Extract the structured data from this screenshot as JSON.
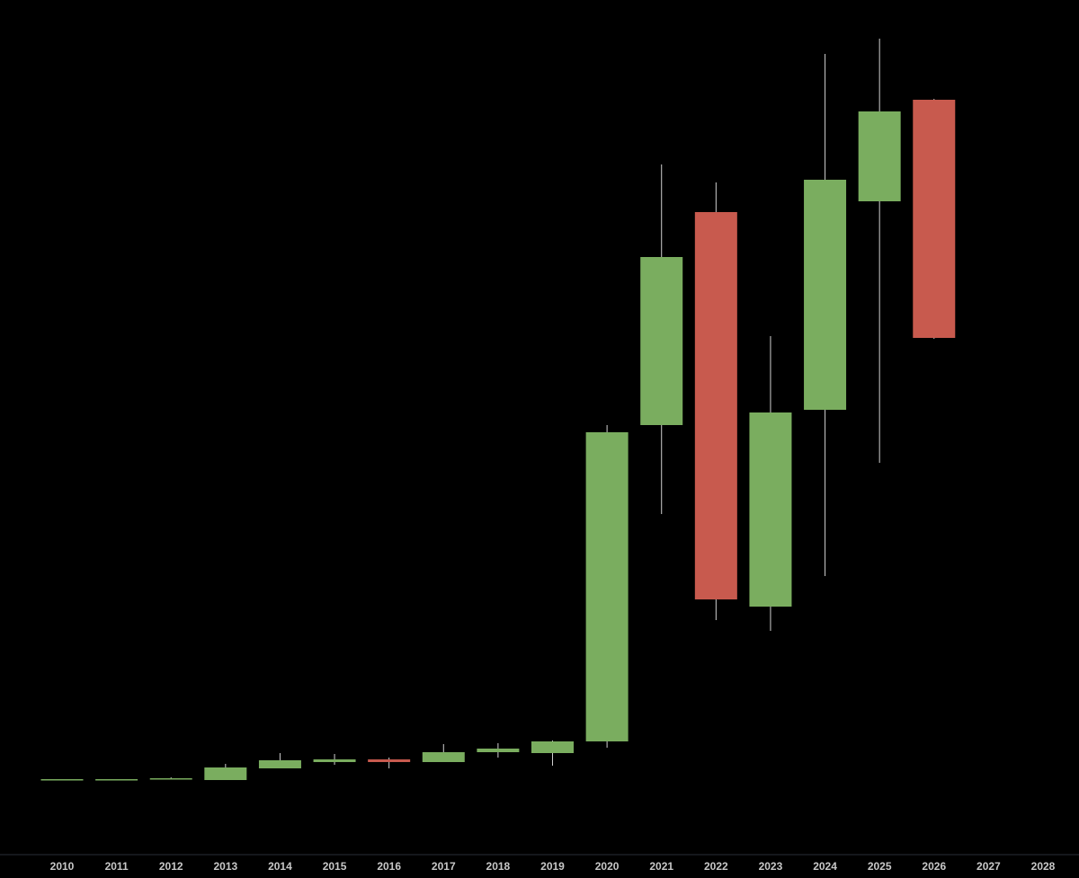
{
  "chart_data": {
    "type": "candlestick",
    "categories": [
      "2010",
      "2011",
      "2012",
      "2013",
      "2014",
      "2015",
      "2016",
      "2017",
      "2018",
      "2019",
      "2020",
      "2021",
      "2022",
      "2023",
      "2024",
      "2025",
      "2026",
      "2027",
      "2028"
    ],
    "open": [
      82,
      82,
      83,
      82,
      95,
      102,
      105,
      102,
      113,
      112,
      125,
      477,
      714,
      275,
      494,
      726,
      839,
      null,
      null
    ],
    "high": [
      83,
      83,
      85,
      100,
      112,
      111,
      107,
      122,
      123,
      126,
      477,
      767,
      747,
      576,
      890,
      907,
      840,
      null,
      null
    ],
    "low": [
      82,
      82,
      83,
      82,
      95,
      99,
      95,
      102,
      107,
      98,
      118,
      378,
      260,
      248,
      309,
      435,
      573,
      null,
      null
    ],
    "close": [
      83,
      83,
      84,
      96,
      104,
      105,
      102,
      113,
      117,
      125,
      469,
      664,
      283,
      491,
      750,
      826,
      574,
      null,
      null
    ],
    "up_color": "#7aad5f",
    "down_color": "#c85a4e",
    "ylim": [
      0,
      950
    ]
  }
}
